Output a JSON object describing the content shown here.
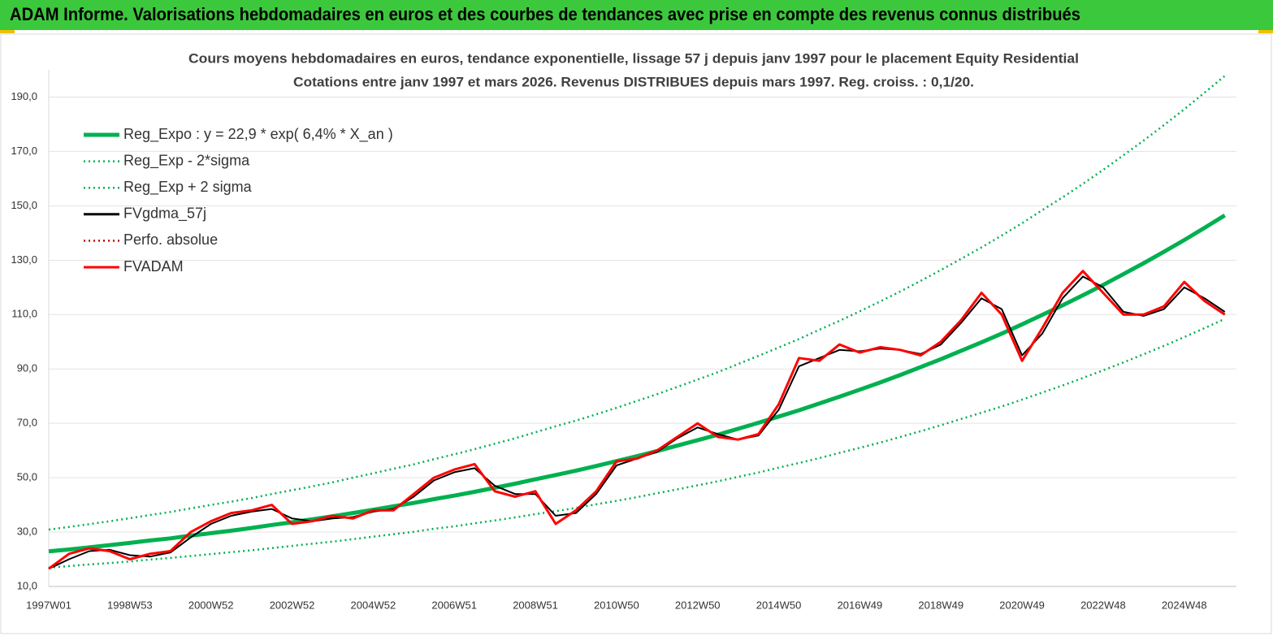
{
  "chart_data": {
    "type": "line",
    "title": "ADAM Informe. Valorisations hebdomadaires en euros et des courbes de tendances avec prise en compte des revenus connus distribués",
    "subtitle": [
      "Cours moyens hebdomadaires en euros, tendance exponentielle, lissage 57 j depuis janv 1997 pour le placement Equity Residential",
      "Cotations entre janv 1997 et mars 2026. Revenus DISTRIBUES depuis mars 1997. Reg. croiss. : 0,1/20."
    ],
    "categories": [
      "1997W01",
      null,
      null,
      null,
      "1998W53",
      null,
      null,
      null,
      "2000W52",
      null,
      null,
      null,
      "2002W52",
      null,
      null,
      null,
      "2004W52",
      null,
      null,
      null,
      "2006W51",
      null,
      null,
      null,
      "2008W51",
      null,
      null,
      null,
      "2010W50",
      null,
      null,
      null,
      "2012W50",
      null,
      null,
      null,
      "2014W50",
      null,
      null,
      null,
      "2016W49",
      null,
      null,
      null,
      "2018W49",
      null,
      null,
      null,
      "2020W49",
      null,
      null,
      null,
      "2022W48",
      null,
      null,
      null,
      "2024W48",
      null,
      null
    ],
    "ylim": [
      10,
      200
    ],
    "yticks": [
      {
        "value": 10,
        "label": "10,0"
      },
      {
        "value": 30,
        "label": "30,0"
      },
      {
        "value": 50,
        "label": "50,0"
      },
      {
        "value": 70,
        "label": "70,0"
      },
      {
        "value": 90,
        "label": "90,0"
      },
      {
        "value": 110,
        "label": "110,0"
      },
      {
        "value": 130,
        "label": "130,0"
      },
      {
        "value": 150,
        "label": "150,0"
      },
      {
        "value": 170,
        "label": "170,0"
      },
      {
        "value": 190,
        "label": "190,0"
      }
    ],
    "grid": true,
    "legend": "top-left",
    "series": [
      {
        "name": "Reg_Expo : y = 22,9 * exp( 6,4% *  X_an )",
        "color": "#00b050",
        "dash": "solid",
        "values": [
          22.9,
          23.6,
          24.4,
          25.2,
          26.0,
          26.9,
          27.7,
          28.7,
          29.6,
          30.5,
          31.5,
          32.6,
          33.6,
          34.7,
          35.8,
          37.0,
          38.2,
          39.5,
          40.7,
          42.1,
          43.4,
          44.8,
          46.3,
          47.8,
          49.4,
          51.0,
          52.6,
          54.3,
          56.1,
          57.9,
          59.8,
          61.8,
          63.8,
          65.8,
          68.0,
          70.2,
          72.5,
          74.8,
          77.3,
          79.8,
          82.4,
          85.0,
          87.8,
          90.7,
          93.6,
          96.7,
          99.8,
          103.0,
          106.4,
          109.9,
          113.4,
          117.1,
          120.9,
          124.9,
          128.9,
          133.1,
          137.4,
          141.9,
          146.5
        ]
      },
      {
        "name": "Reg_Exp - 2*sigma",
        "color": "#00b050",
        "dash": "dotted",
        "values": [
          16.9,
          17.5,
          18.1,
          18.6,
          19.2,
          19.9,
          20.5,
          21.2,
          21.9,
          22.6,
          23.3,
          24.1,
          24.9,
          25.7,
          26.5,
          27.4,
          28.3,
          29.2,
          30.1,
          31.2,
          32.1,
          33.2,
          34.3,
          35.4,
          36.6,
          37.7,
          38.9,
          40.2,
          41.5,
          42.8,
          44.3,
          45.7,
          47.2,
          48.7,
          50.3,
          51.9,
          53.7,
          55.4,
          57.2,
          59.1,
          61.0,
          62.9,
          65.0,
          67.1,
          69.3,
          71.6,
          73.9,
          76.2,
          78.7,
          81.3,
          83.9,
          86.7,
          89.5,
          92.4,
          95.4,
          98.5,
          101.7,
          105.0,
          108.4
        ]
      },
      {
        "name": "Reg_Exp + 2 sigma",
        "color": "#00b050",
        "dash": "dotted",
        "values": [
          30.9,
          31.9,
          32.9,
          34.0,
          35.1,
          36.3,
          37.4,
          38.7,
          40.0,
          41.2,
          42.5,
          44.0,
          45.4,
          46.8,
          48.3,
          50.0,
          51.6,
          53.3,
          54.9,
          56.8,
          58.6,
          60.5,
          62.5,
          64.5,
          66.7,
          68.9,
          71.0,
          73.3,
          75.7,
          78.2,
          80.7,
          83.4,
          86.1,
          88.8,
          91.8,
          94.8,
          97.9,
          101.0,
          104.4,
          107.7,
          111.2,
          114.8,
          118.5,
          122.4,
          126.4,
          130.5,
          134.7,
          139.1,
          143.6,
          148.4,
          153.1,
          158.1,
          163.2,
          168.6,
          174.0,
          179.7,
          185.5,
          191.6,
          197.8
        ]
      },
      {
        "name": "FVgdma_57j",
        "color": "#000000",
        "dash": "solid",
        "values": [
          16.5,
          20,
          23,
          23.5,
          21.5,
          21,
          22.5,
          28,
          33,
          36,
          37.5,
          38.5,
          35,
          34,
          35,
          35.5,
          37.5,
          38.5,
          43,
          49,
          52,
          53.5,
          47,
          44,
          44,
          36,
          37,
          44,
          54.5,
          57,
          59.5,
          64.5,
          68.5,
          66,
          64,
          65.5,
          75,
          91,
          94,
          97,
          96.5,
          97.5,
          97,
          95.5,
          99,
          107,
          116,
          112,
          95,
          103,
          116,
          124,
          120,
          111,
          109.5,
          112,
          120,
          116,
          111
        ]
      },
      {
        "name": "Perfo. absolue",
        "color": "#c00000",
        "dash": "dotted",
        "values": [
          16.5,
          22,
          24,
          23,
          20,
          22,
          23,
          30,
          34,
          37,
          38,
          40,
          33,
          34,
          36,
          35,
          38,
          38,
          44,
          50,
          53,
          55,
          45,
          43,
          45,
          33,
          38,
          45,
          56,
          57,
          60,
          65,
          70,
          65,
          64,
          66,
          77,
          94,
          93,
          99,
          96,
          98,
          97,
          95,
          100,
          108,
          118,
          110,
          93,
          105,
          118,
          126,
          118,
          110,
          110,
          113,
          122,
          115,
          110
        ]
      },
      {
        "name": "FVADAM",
        "color": "#ff0000",
        "dash": "solid",
        "values": [
          16.5,
          22,
          24,
          23,
          20,
          22,
          23,
          30,
          34,
          37,
          38,
          40,
          33,
          34,
          36,
          35,
          38,
          38,
          44,
          50,
          53,
          55,
          45,
          43,
          45,
          33,
          38,
          45,
          56,
          57,
          60,
          65,
          70,
          65,
          64,
          66,
          77,
          94,
          93,
          99,
          96,
          98,
          97,
          95,
          100,
          108,
          118,
          110,
          93,
          105,
          118,
          126,
          118,
          110,
          110,
          113,
          122,
          115,
          110
        ]
      }
    ]
  }
}
